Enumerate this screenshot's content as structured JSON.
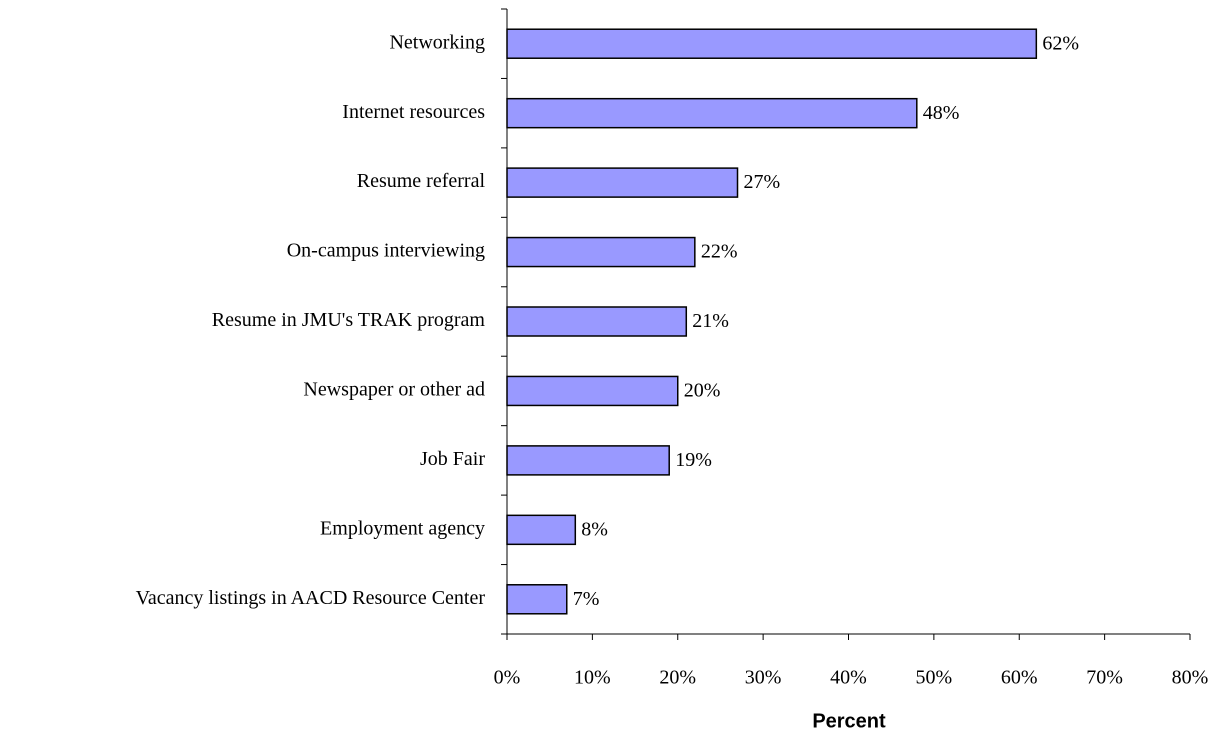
{
  "chart_data": {
    "type": "bar",
    "orientation": "horizontal",
    "x_label": "Percent",
    "categories": [
      "Networking",
      "Internet resources",
      "Resume referral",
      "On-campus interviewing",
      "Resume in JMU's TRAK program",
      "Newspaper or other ad",
      "Job Fair",
      "Employment agency",
      "Vacancy listings in AACD Resource Center"
    ],
    "values": [
      62,
      48,
      27,
      22,
      21,
      20,
      19,
      8,
      7
    ],
    "value_labels": [
      "62%",
      "48%",
      "27%",
      "22%",
      "21%",
      "20%",
      "19%",
      "8%",
      "7%"
    ],
    "color": "#9999ff",
    "xlim": [
      0,
      80
    ],
    "xticks": [
      {
        "value": 0,
        "label": "0%"
      },
      {
        "value": 10,
        "label": "10%"
      },
      {
        "value": 20,
        "label": "20%"
      },
      {
        "value": 30,
        "label": "30%"
      },
      {
        "value": 40,
        "label": "40%"
      },
      {
        "value": 50,
        "label": "50%"
      },
      {
        "value": 60,
        "label": "60%"
      },
      {
        "value": 70,
        "label": "70%"
      },
      {
        "value": 80,
        "label": "80%"
      }
    ],
    "grid": false
  }
}
